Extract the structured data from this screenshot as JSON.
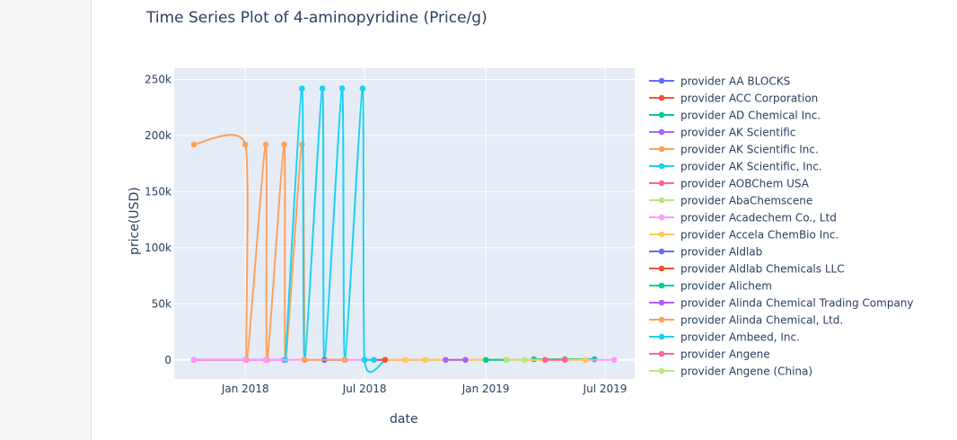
{
  "chart_data": {
    "type": "line",
    "title": "Time Series Plot of 4-aminopyridine (Price/g)",
    "xlabel": "date",
    "ylabel": "price(USD)",
    "x_ticks": [
      "Jan 2018",
      "Jul 2018",
      "Jan 2019",
      "Jul 2019"
    ],
    "y_ticks": [
      "0",
      "50k",
      "100k",
      "150k",
      "200k",
      "250k"
    ],
    "ylim": [
      -17000,
      260000
    ],
    "xlim": [
      "2017-09-15",
      "2019-08-15"
    ],
    "grid": true,
    "legend_position": "right",
    "line_shape": "spline",
    "series": [
      {
        "name": "provider AA BLOCKS",
        "color": "#636efa",
        "points": [
          [
            "2017-10-15",
            0
          ],
          [
            "2018-01-01",
            0
          ]
        ]
      },
      {
        "name": "provider ACC Corporation",
        "color": "#EF553B",
        "points": [
          [
            "2017-10-15",
            0
          ],
          [
            "2018-02-01",
            0
          ]
        ]
      },
      {
        "name": "provider AD Chemical Inc.",
        "color": "#00cc96",
        "points": [
          [
            "2019-03-15",
            600
          ],
          [
            "2019-05-01",
            600
          ],
          [
            "2019-06-15",
            600
          ]
        ]
      },
      {
        "name": "provider AK Scientific",
        "color": "#ab63fa",
        "points": [
          [
            "2018-01-01",
            0
          ],
          [
            "2018-03-01",
            0
          ]
        ]
      },
      {
        "name": "provider AK Scientific Inc.",
        "color": "#FFA15A",
        "points": [
          [
            "2017-10-15",
            192000
          ],
          [
            "2018-01-01",
            192000
          ],
          [
            "2018-01-03",
            0
          ],
          [
            "2018-02-01",
            192000
          ],
          [
            "2018-02-03",
            0
          ],
          [
            "2018-03-01",
            192000
          ],
          [
            "2018-03-03",
            0
          ],
          [
            "2018-03-28",
            192000
          ],
          [
            "2018-04-01",
            0
          ]
        ]
      },
      {
        "name": "provider AK Scientific, Inc.",
        "color": "#19d3f3",
        "points": [
          [
            "2018-03-03",
            0
          ],
          [
            "2018-03-28",
            242000
          ],
          [
            "2018-04-01",
            0
          ],
          [
            "2018-04-28",
            242000
          ],
          [
            "2018-05-01",
            0
          ],
          [
            "2018-05-28",
            242000
          ],
          [
            "2018-06-01",
            0
          ],
          [
            "2018-06-28",
            242000
          ],
          [
            "2018-07-01",
            0
          ],
          [
            "2018-08-01",
            0
          ]
        ]
      },
      {
        "name": "provider AOBChem USA",
        "color": "#FF6692",
        "points": [
          [
            "2018-08-01",
            0
          ],
          [
            "2018-10-01",
            0
          ]
        ]
      },
      {
        "name": "provider AbaChemscene",
        "color": "#B6E880",
        "points": [
          [
            "2018-09-01",
            0
          ],
          [
            "2018-11-01",
            0
          ]
        ]
      },
      {
        "name": "provider Acadechem Co., Ltd",
        "color": "#FF97FF",
        "points": [
          [
            "2017-10-15",
            0
          ],
          [
            "2018-01-01",
            0
          ],
          [
            "2018-02-01",
            0
          ],
          [
            "2019-07-15",
            0
          ]
        ]
      },
      {
        "name": "provider Accela ChemBio Inc.",
        "color": "#FECB52",
        "points": [
          [
            "2018-08-01",
            0
          ],
          [
            "2018-09-01",
            0
          ],
          [
            "2018-10-01",
            0
          ],
          [
            "2018-11-01",
            0
          ],
          [
            "2018-12-01",
            0
          ],
          [
            "2019-01-01",
            0
          ],
          [
            "2019-02-01",
            0
          ],
          [
            "2019-03-01",
            0
          ],
          [
            "2019-04-01",
            0
          ],
          [
            "2019-05-01",
            0
          ],
          [
            "2019-06-01",
            0
          ]
        ]
      },
      {
        "name": "provider Aldlab",
        "color": "#636efa",
        "points": [
          [
            "2018-05-01",
            0
          ],
          [
            "2018-06-01",
            0
          ]
        ]
      },
      {
        "name": "provider Aldlab Chemicals LLC",
        "color": "#EF553B",
        "points": [
          [
            "2018-07-01",
            0
          ],
          [
            "2018-08-01",
            0
          ]
        ]
      },
      {
        "name": "provider Alichem",
        "color": "#00cc96",
        "points": [
          [
            "2019-01-01",
            0
          ],
          [
            "2019-02-01",
            0
          ]
        ]
      },
      {
        "name": "provider Alinda Chemical Trading Company",
        "color": "#ab63fa",
        "points": [
          [
            "2018-11-01",
            0
          ],
          [
            "2018-12-01",
            0
          ]
        ]
      },
      {
        "name": "provider Alinda Chemical, Ltd.",
        "color": "#FFA15A",
        "points": [
          [
            "2018-04-01",
            0
          ],
          [
            "2018-06-01",
            0
          ]
        ]
      },
      {
        "name": "provider Ambeed, Inc.",
        "color": "#19d3f3",
        "points": [
          [
            "2018-07-01",
            0
          ],
          [
            "2018-07-15",
            0
          ]
        ]
      },
      {
        "name": "provider Angene",
        "color": "#FF6692",
        "points": [
          [
            "2019-04-01",
            0
          ],
          [
            "2019-05-01",
            0
          ]
        ]
      },
      {
        "name": "provider Angene (China)",
        "color": "#B6E880",
        "points": [
          [
            "2019-02-01",
            0
          ],
          [
            "2019-03-01",
            0
          ]
        ]
      }
    ]
  },
  "page": {
    "bg": "#ffffff",
    "plot_bg": "#e5ecf6",
    "text_color": "#2a3f5f"
  }
}
